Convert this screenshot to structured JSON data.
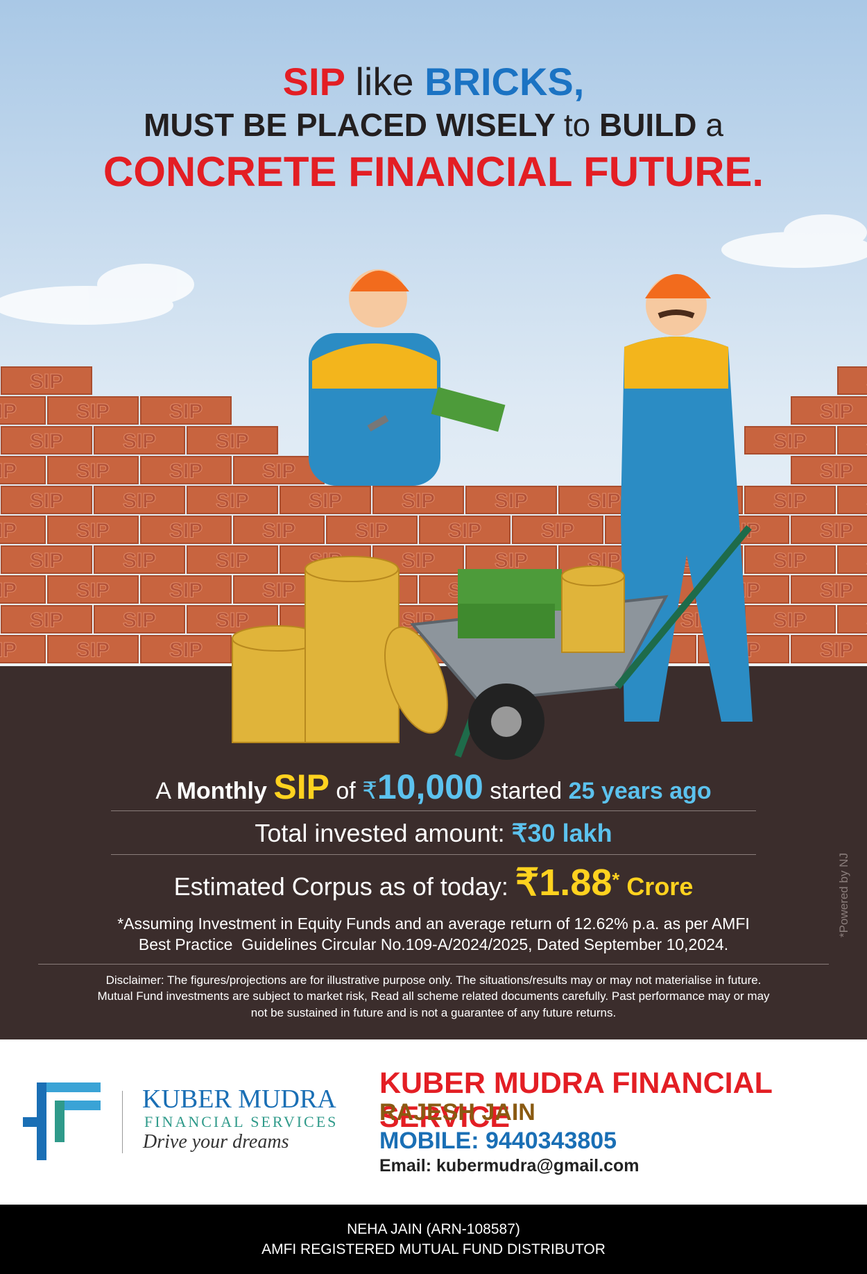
{
  "headline": {
    "l1_sip": "SIP",
    "l1_like": "like",
    "l1_bricks": "BRICKS,",
    "l2_must": "MUST BE PLACED WISELY",
    "l2_to": "to",
    "l2_build": "BUILD",
    "l2_a": "a",
    "l3": "CONCRETE FINANCIAL FUTURE."
  },
  "brick_label": "SIP",
  "stats": {
    "line1": {
      "a": "A",
      "monthly": "Monthly",
      "sip": "SIP",
      "of": "of",
      "rupee": "₹",
      "amount": "10,000",
      "started": "started",
      "years": "25 years ago"
    },
    "line2": {
      "label": "Total invested amount:",
      "value": "₹30 lakh"
    },
    "line3": {
      "label": "Estimated Corpus as of today:",
      "value": "₹1.88",
      "star": "*",
      "unit": "Crore"
    }
  },
  "footnote": [
    "*Assuming Investment in Equity Funds and an average return of 12.62% p.a. as per AMFI",
    "Best Practice  Guidelines Circular No.109-A/2024/2025, Dated September 10,2024."
  ],
  "disclaimer": [
    "Disclaimer: The figures/projections are for illustrative purpose only. The situations/results may or may not materialise in future.",
    "Mutual Fund investments are subject to market risk, Read all scheme related documents carefully. Past performance may or may",
    "not be sustained in future and is not a guarantee of any future returns."
  ],
  "powered_by": "*Powered by NJ",
  "brand": {
    "name": "KUBER MUDRA",
    "sub": "FINANCIAL SERVICES",
    "tagline": "Drive your dreams"
  },
  "contact": {
    "company": "KUBER MUDRA FINANCIAL SERVICE",
    "person": "RAJESH JAIN",
    "mobile": "MOBILE: 9440343805",
    "email": "Email: kubermudra@gmail.com"
  },
  "footer": [
    "NEHA JAIN (ARN-108587)",
    "AMFI REGISTERED MUTUAL FUND DISTRIBUTOR"
  ]
}
